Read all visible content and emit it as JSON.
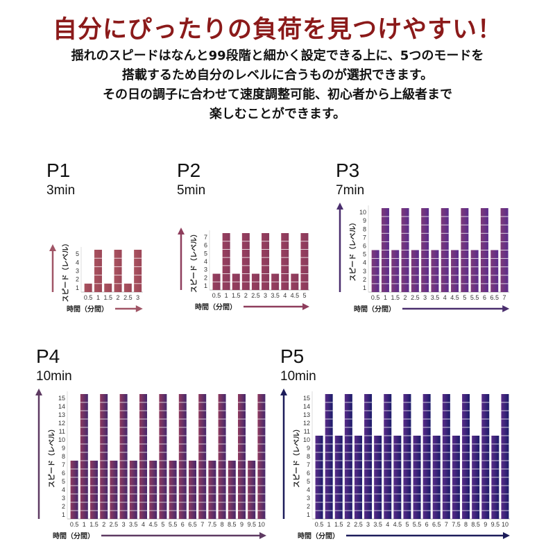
{
  "header": {
    "headline": "自分にぴったりの負荷を見つけやすい！",
    "lines": [
      "揺れのスピードはなんと99段階と細かく設定できる上に、5つのモードを",
      "搭載するため自分のレベルに合うものが選択できます。",
      "その日の調子に合わせて速度調整可能、初心者から上級者まで",
      "楽しむことができます。"
    ]
  },
  "chart_data": [
    {
      "type": "bar",
      "title": "P1",
      "subtitle": "3min",
      "ylabel": "スピード（レベル）",
      "xlabel": "時間（分間）",
      "ylim": [
        0,
        5
      ],
      "categories": [
        "0.5",
        "1",
        "1.5",
        "2",
        "2.5",
        "3"
      ],
      "values": [
        1,
        5,
        1,
        5,
        1,
        5
      ],
      "colors": [
        "#a9525e",
        "#9c4658"
      ],
      "arrow_color": "#a05566"
    },
    {
      "type": "bar",
      "title": "P2",
      "subtitle": "5min",
      "ylabel": "スピード（レベル）",
      "xlabel": "時間（分間）",
      "ylim": [
        0,
        7
      ],
      "categories": [
        "0.5",
        "1",
        "1.5",
        "2",
        "2.5",
        "3",
        "3.5",
        "4",
        "4.5",
        "5"
      ],
      "values": [
        2,
        7,
        2,
        7,
        2,
        7,
        2,
        7,
        2,
        7
      ],
      "colors": [
        "#983f5e",
        "#893a5c"
      ],
      "arrow_color": "#8e3d5c"
    },
    {
      "type": "bar",
      "title": "P3",
      "subtitle": "7min",
      "ylabel": "スピード（レベル）",
      "xlabel": "時間（分間）",
      "ylim": [
        0,
        10
      ],
      "categories": [
        "0.5",
        "1",
        "1.5",
        "2",
        "2.5",
        "3",
        "3.5",
        "4",
        "4.5",
        "5",
        "5.5",
        "6",
        "6.5",
        "7"
      ],
      "values": [
        5,
        10,
        5,
        10,
        5,
        10,
        5,
        10,
        5,
        10,
        5,
        10,
        5,
        10
      ],
      "colors": [
        "#7e3a78",
        "#5a2c8c"
      ],
      "arrow_color": "#4a2e6e"
    },
    {
      "type": "bar",
      "title": "P4",
      "subtitle": "10min",
      "ylabel": "スピード（レベル）",
      "xlabel": "時間（分間）",
      "ylim": [
        0,
        15
      ],
      "categories": [
        "0.5",
        "1",
        "1.5",
        "2",
        "2.5",
        "3",
        "3.5",
        "4",
        "4.5",
        "5",
        "5.5",
        "6",
        "6.5",
        "7",
        "7.5",
        "8",
        "8.5",
        "9",
        "9.5",
        "10"
      ],
      "values": [
        7,
        15,
        7,
        15,
        7,
        15,
        7,
        15,
        7,
        15,
        7,
        15,
        7,
        15,
        7,
        15,
        7,
        15,
        7,
        15
      ],
      "colors": [
        "#8e3a5e",
        "#45286c"
      ],
      "arrow_color": "#5e3a62"
    },
    {
      "type": "bar",
      "title": "P5",
      "subtitle": "10min",
      "ylabel": "スピード（レベル）",
      "xlabel": "時間（分間）",
      "ylim": [
        0,
        15
      ],
      "categories": [
        "0.5",
        "1",
        "1.5",
        "2",
        "2.5",
        "3",
        "3.5",
        "4",
        "4.5",
        "5",
        "5.5",
        "6",
        "6.5",
        "7",
        "7.5",
        "8",
        "8.5",
        "9",
        "9.5",
        "10"
      ],
      "values": [
        10,
        15,
        10,
        15,
        10,
        15,
        10,
        15,
        10,
        15,
        10,
        15,
        10,
        15,
        10,
        15,
        10,
        15,
        10,
        15
      ],
      "colors": [
        "#5a2c88",
        "#1c1c6a"
      ],
      "arrow_color": "#1c1c5a"
    }
  ]
}
